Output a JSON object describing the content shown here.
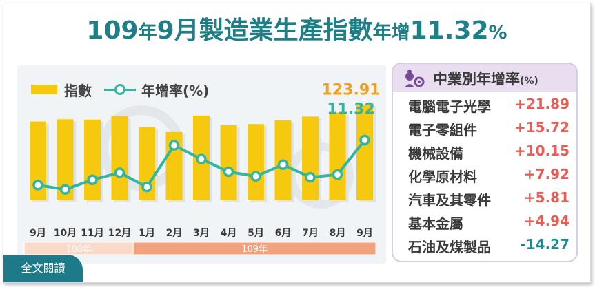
{
  "title": {
    "parts": [
      {
        "t": "109",
        "cls": "big"
      },
      {
        "t": "年",
        "cls": "small"
      },
      {
        "t": "9",
        "cls": "big"
      },
      {
        "t": "月製造業生產指數",
        "cls": "big"
      },
      {
        "t": "年增",
        "cls": "small"
      },
      {
        "t": "11.32",
        "cls": "big"
      },
      {
        "t": "%",
        "cls": "small"
      }
    ]
  },
  "legend": {
    "bar_label": "指數",
    "line_label": "年增率(%)"
  },
  "read_all": "全文閱讀",
  "colors": {
    "bar": "#f6c90e",
    "line": "#34b59f",
    "accent": "#1e7f86",
    "last_value": "#f0a020",
    "year_108": "#f9d9c8",
    "year_109": "#f2a27e"
  },
  "chart_data": {
    "type": "bar",
    "categories": [
      "9月",
      "10月",
      "11月",
      "12月",
      "1月",
      "2月",
      "3月",
      "4月",
      "5月",
      "6月",
      "7月",
      "8月",
      "9月"
    ],
    "series": [
      {
        "name": "指數",
        "type": "bar",
        "values": [
          112.5,
          114.0,
          113.8,
          116.0,
          109.0,
          105.5,
          116.5,
          110.0,
          110.8,
          113.2,
          115.8,
          118.5,
          123.91
        ]
      },
      {
        "name": "年增率(%)",
        "type": "line",
        "values": [
          -3.2,
          -4.6,
          -1.5,
          0.8,
          -3.8,
          9.6,
          5.2,
          1.1,
          -0.4,
          3.4,
          -0.7,
          0.2,
          11.32
        ]
      }
    ],
    "data_labels": [
      {
        "series": "指數",
        "index": 12,
        "text": "123.91"
      },
      {
        "series": "年增率(%)",
        "index": 12,
        "text": "11.32"
      }
    ],
    "year_groups": [
      {
        "label": "108年",
        "from": 0,
        "to": 3
      },
      {
        "label": "109年",
        "from": 4,
        "to": 12
      }
    ],
    "legend": "top-left"
  },
  "industry_panel": {
    "title": "中業別年增率",
    "unit": "(%)",
    "items": [
      {
        "name": "電腦電子光學",
        "value": "+21.89"
      },
      {
        "name": "電子零組件",
        "value": "+15.72"
      },
      {
        "name": "機械設備",
        "value": "+10.15"
      },
      {
        "name": "化學原材料",
        "value": "+7.92"
      },
      {
        "name": "汽車及其零件",
        "value": "+5.81"
      },
      {
        "name": "基本金屬",
        "value": "+4.94"
      },
      {
        "name": "石油及煤製品",
        "value": "-14.27"
      }
    ]
  }
}
